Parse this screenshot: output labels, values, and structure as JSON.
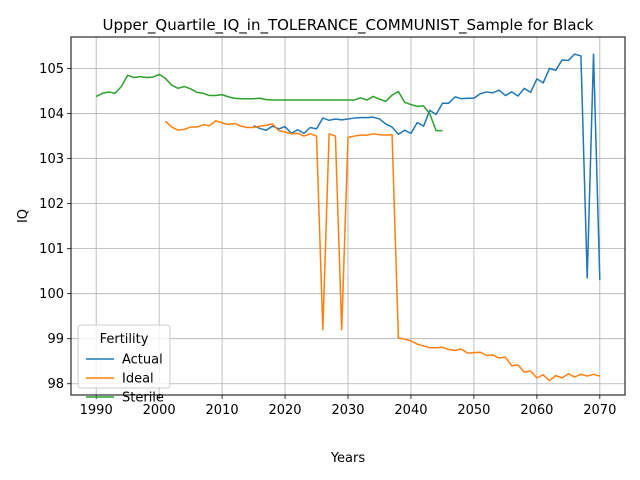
{
  "chart_data": {
    "type": "line",
    "title": "Upper_Quartile_IQ_in_TOLERANCE_COMMUNIST_Sample for Black",
    "xlabel": "Years",
    "ylabel": "IQ",
    "xlim": [
      1986,
      2074
    ],
    "ylim": [
      97.75,
      105.7
    ],
    "grid": true,
    "legend": {
      "title": "Fertility",
      "placement": "lower-left"
    },
    "x_ticks": [
      1990,
      2000,
      2010,
      2020,
      2030,
      2040,
      2050,
      2060,
      2070
    ],
    "y_ticks": [
      98,
      99,
      100,
      101,
      102,
      103,
      104,
      105
    ],
    "series": [
      {
        "name": "Actual",
        "color": "#1f77b4",
        "x": [
          2015,
          2016,
          2017,
          2018,
          2019,
          2020,
          2021,
          2022,
          2023,
          2024,
          2025,
          2026,
          2027,
          2028,
          2029,
          2030,
          2031,
          2032,
          2033,
          2034,
          2035,
          2036,
          2037,
          2038,
          2039,
          2040,
          2041,
          2042,
          2043,
          2044,
          2045,
          2046,
          2047,
          2048,
          2049,
          2050,
          2051,
          2052,
          2053,
          2054,
          2055,
          2056,
          2057,
          2058,
          2059,
          2060,
          2061,
          2062,
          2063,
          2064,
          2065,
          2066,
          2067,
          2068,
          2069,
          2070
        ],
        "values": [
          103.73,
          103.67,
          103.63,
          103.72,
          103.66,
          103.71,
          103.56,
          103.64,
          103.56,
          103.69,
          103.66,
          103.9,
          103.85,
          103.88,
          103.86,
          103.88,
          103.9,
          103.91,
          103.91,
          103.92,
          103.88,
          103.77,
          103.7,
          103.54,
          103.63,
          103.56,
          103.8,
          103.72,
          104.07,
          103.98,
          104.23,
          104.23,
          104.37,
          104.33,
          104.34,
          104.34,
          104.44,
          104.48,
          104.46,
          104.52,
          104.4,
          104.48,
          104.39,
          104.56,
          104.47,
          104.77,
          104.68,
          105.0,
          104.96,
          105.19,
          105.18,
          105.32,
          105.28,
          100.35,
          105.32,
          100.3
        ]
      },
      {
        "name": "Ideal",
        "color": "#ff7f0e",
        "x": [
          2001,
          2002,
          2003,
          2004,
          2005,
          2006,
          2007,
          2008,
          2009,
          2010,
          2011,
          2012,
          2013,
          2014,
          2015,
          2016,
          2017,
          2018,
          2019,
          2020,
          2021,
          2022,
          2023,
          2024,
          2025,
          2026,
          2027,
          2028,
          2029,
          2030,
          2031,
          2032,
          2033,
          2034,
          2035,
          2036,
          2037,
          2038,
          2039,
          2040,
          2041,
          2042,
          2043,
          2044,
          2045,
          2046,
          2047,
          2048,
          2049,
          2050,
          2051,
          2052,
          2053,
          2054,
          2055,
          2056,
          2057,
          2058,
          2059,
          2060,
          2061,
          2062,
          2063,
          2064,
          2065,
          2066,
          2067,
          2068,
          2069,
          2070
        ],
        "values": [
          103.83,
          103.7,
          103.63,
          103.65,
          103.7,
          103.7,
          103.75,
          103.73,
          103.84,
          103.79,
          103.76,
          103.78,
          103.72,
          103.69,
          103.69,
          103.72,
          103.74,
          103.77,
          103.62,
          103.59,
          103.55,
          103.56,
          103.5,
          103.55,
          103.5,
          99.2,
          103.55,
          103.5,
          99.2,
          103.47,
          103.5,
          103.52,
          103.52,
          103.55,
          103.53,
          103.52,
          103.53,
          99.02,
          98.99,
          98.95,
          98.88,
          98.84,
          98.8,
          98.8,
          98.81,
          98.76,
          98.74,
          98.77,
          98.68,
          98.69,
          98.7,
          98.63,
          98.64,
          98.57,
          98.59,
          98.4,
          98.42,
          98.26,
          98.28,
          98.13,
          98.2,
          98.07,
          98.18,
          98.13,
          98.22,
          98.15,
          98.21,
          98.17,
          98.21,
          98.17
        ]
      },
      {
        "name": "Sterile",
        "color": "#2ca02c",
        "x": [
          1990,
          1991,
          1992,
          1993,
          1994,
          1995,
          1996,
          1997,
          1998,
          1999,
          2000,
          2001,
          2002,
          2003,
          2004,
          2005,
          2006,
          2007,
          2008,
          2009,
          2010,
          2011,
          2012,
          2013,
          2014,
          2015,
          2016,
          2017,
          2018,
          2019,
          2020,
          2021,
          2022,
          2023,
          2024,
          2025,
          2026,
          2027,
          2028,
          2029,
          2030,
          2031,
          2032,
          2033,
          2034,
          2035,
          2036,
          2037,
          2038,
          2039,
          2040,
          2041,
          2042,
          2043,
          2044,
          2045
        ],
        "values": [
          104.38,
          104.45,
          104.48,
          104.45,
          104.6,
          104.85,
          104.8,
          104.82,
          104.8,
          104.81,
          104.87,
          104.78,
          104.63,
          104.56,
          104.6,
          104.55,
          104.47,
          104.45,
          104.4,
          104.4,
          104.42,
          104.37,
          104.34,
          104.33,
          104.33,
          104.33,
          104.34,
          104.31,
          104.3,
          104.3,
          104.3,
          104.3,
          104.3,
          104.3,
          104.3,
          104.3,
          104.3,
          104.3,
          104.3,
          104.3,
          104.3,
          104.3,
          104.35,
          104.3,
          104.38,
          104.32,
          104.27,
          104.41,
          104.49,
          104.25,
          104.2,
          104.16,
          104.17,
          103.99,
          103.62,
          103.62
        ]
      }
    ]
  }
}
